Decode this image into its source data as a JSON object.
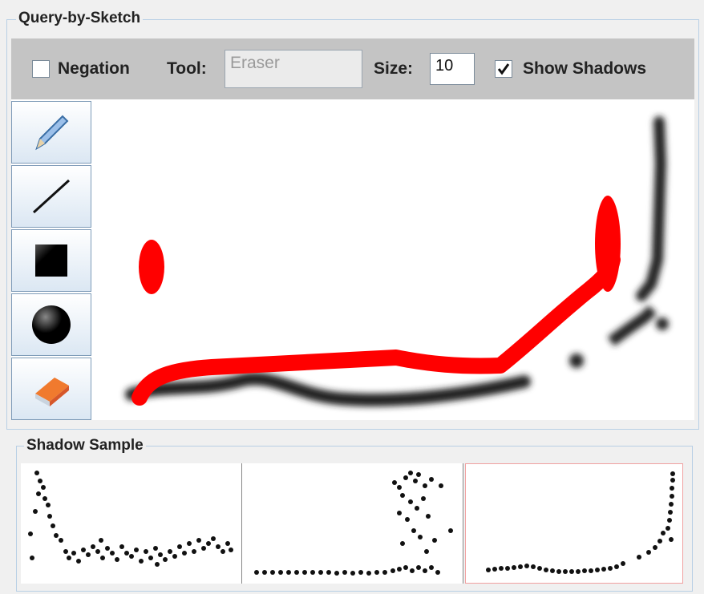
{
  "panel": {
    "title": "Query-by-Sketch"
  },
  "toolbar": {
    "negation_label": "Negation",
    "negation_checked": false,
    "tool_label": "Tool:",
    "tool_value": "Eraser",
    "size_label": "Size:",
    "size_value": "10",
    "show_shadows_label": "Show Shadows",
    "show_shadows_checked": true
  },
  "tools": [
    {
      "name": "pencil-icon"
    },
    {
      "name": "line-icon"
    },
    {
      "name": "rectangle-icon"
    },
    {
      "name": "circle-icon"
    },
    {
      "name": "eraser-icon"
    }
  ],
  "shadow_sample": {
    "title": "Shadow Sample",
    "thumbnails": 3
  },
  "colors": {
    "sketch": "#ff0000",
    "shadow": "#111111",
    "panel_border": "#b8cfe5",
    "toolbar_bg": "#c4c4c4"
  }
}
